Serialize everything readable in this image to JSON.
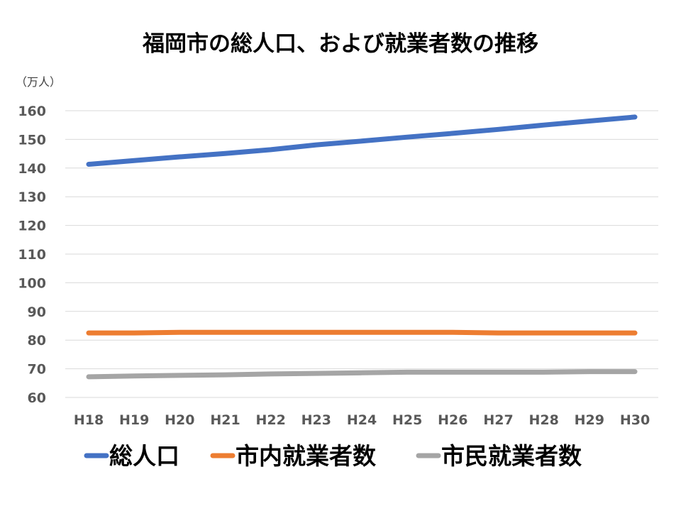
{
  "chart_data": {
    "type": "line",
    "title": "福岡市の総人口、および就業者数の推移",
    "unit_label": "（万人）",
    "categories": [
      "H18",
      "H19",
      "H20",
      "H21",
      "H22",
      "H23",
      "H24",
      "H25",
      "H26",
      "H27",
      "H28",
      "H29",
      "H30"
    ],
    "ylim": [
      60,
      160
    ],
    "yticks": [
      60,
      70,
      80,
      90,
      100,
      110,
      120,
      130,
      140,
      150,
      160
    ],
    "grid": true,
    "legend_position": "bottom",
    "series": [
      {
        "name": "総人口",
        "color": "#4472C4",
        "values": [
          141.3,
          142.6,
          143.9,
          145.1,
          146.4,
          148.1,
          149.4,
          150.8,
          152.1,
          153.5,
          155.0,
          156.4,
          157.8
        ]
      },
      {
        "name": "市内就業者数",
        "color": "#ED7D31",
        "values": [
          82.5,
          82.5,
          82.7,
          82.7,
          82.7,
          82.7,
          82.7,
          82.7,
          82.7,
          82.5,
          82.5,
          82.5,
          82.5
        ]
      },
      {
        "name": "市民就業者数",
        "color": "#A5A5A5",
        "values": [
          67.2,
          67.5,
          67.7,
          67.9,
          68.2,
          68.4,
          68.6,
          68.8,
          68.8,
          68.8,
          68.8,
          69.0,
          69.0
        ]
      }
    ]
  }
}
